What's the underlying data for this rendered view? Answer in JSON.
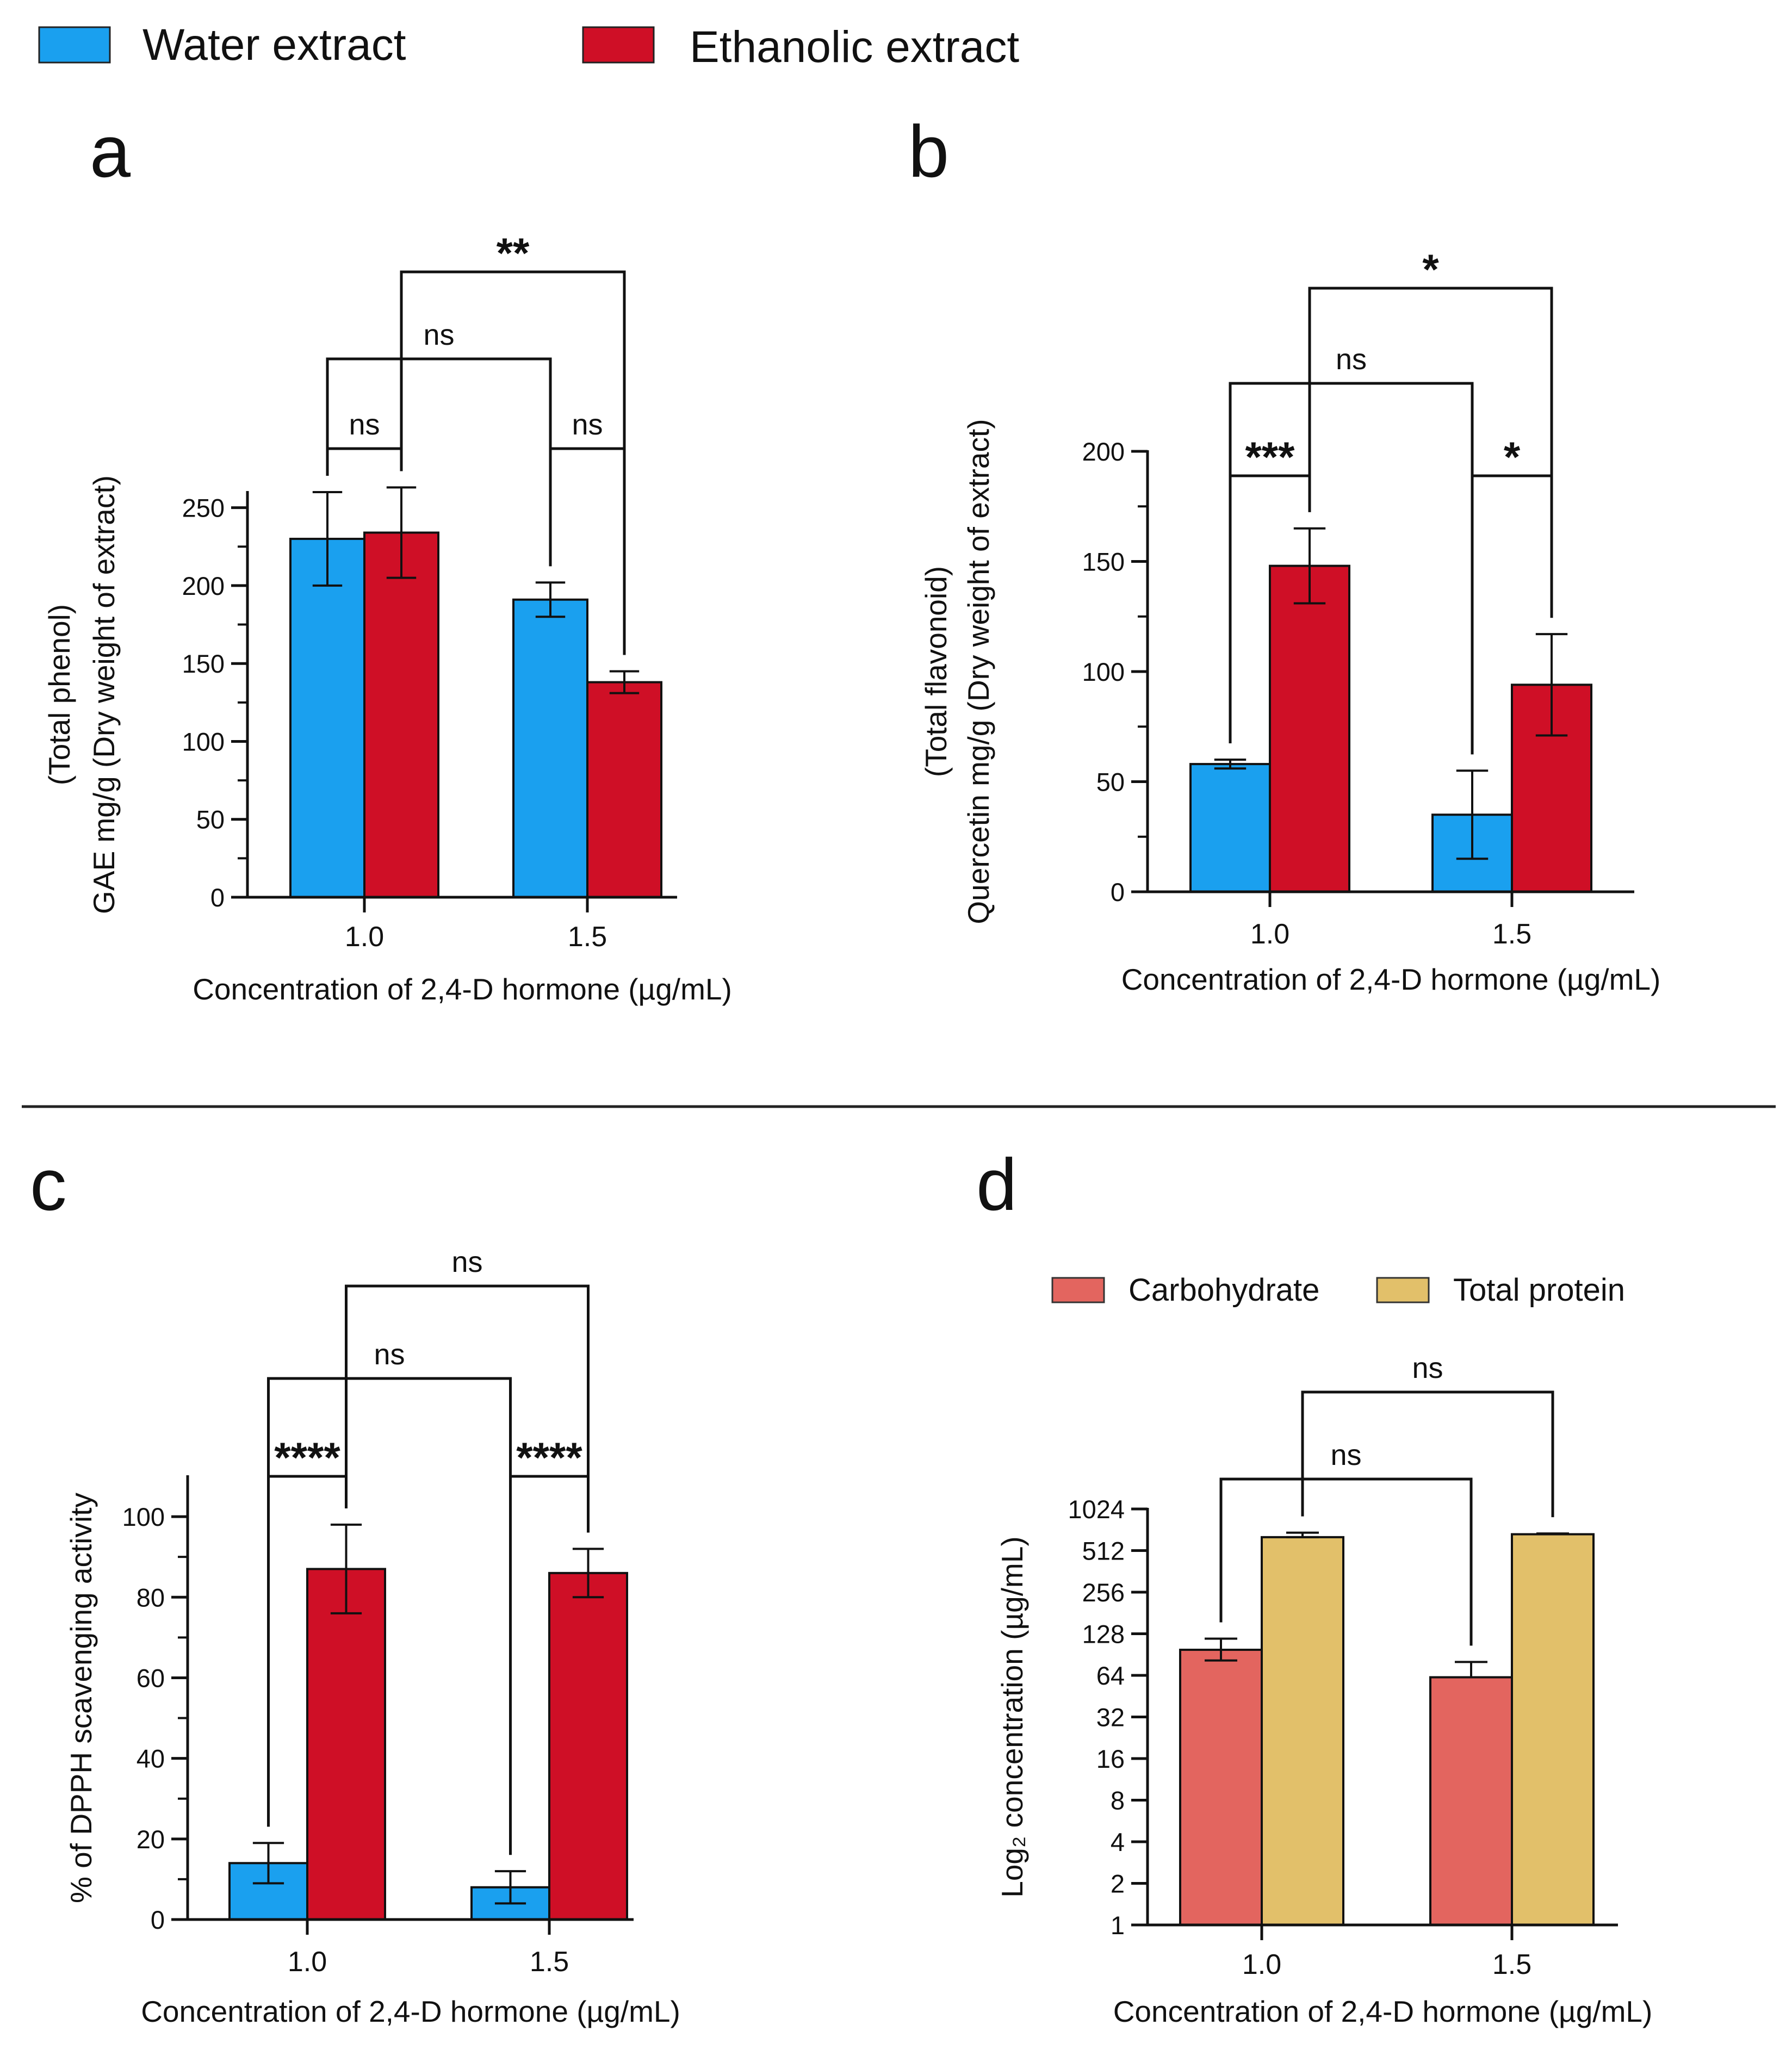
{
  "legend": {
    "items": [
      {
        "label": "Water extract",
        "color": "#1aa0ef"
      },
      {
        "label": "Ethanolic extract",
        "color": "#cf0f26"
      }
    ]
  },
  "divider": {
    "color": "#222222"
  },
  "chart_data": [
    {
      "id": "a",
      "panel_label": "a",
      "type": "bar",
      "title": "",
      "xlabel": "Concentration of 2,4-D hormone (µg/mL)",
      "ylabel_lines": [
        "(Total phenol)",
        "GAE mg/g (Dry weight of extract)"
      ],
      "categories": [
        "1.0",
        "1.5"
      ],
      "scale": "linear",
      "ylim": [
        0,
        260
      ],
      "yticks": [
        0,
        50,
        100,
        150,
        200,
        250
      ],
      "ytick_labels": [
        "0",
        "50",
        "100",
        "150",
        "200",
        "250"
      ],
      "series": [
        {
          "name": "Water extract",
          "color": "#1aa0ef",
          "values": [
            230,
            191
          ],
          "errors": [
            30,
            11
          ]
        },
        {
          "name": "Ethanolic extract",
          "color": "#cf0f26",
          "values": [
            234,
            138
          ],
          "errors": [
            29,
            7
          ]
        }
      ],
      "significance": [
        {
          "label": "ns",
          "from": [
            0,
            0
          ],
          "to": [
            0,
            1
          ]
        },
        {
          "label": "ns",
          "from": [
            1,
            0
          ],
          "to": [
            1,
            1
          ]
        },
        {
          "label": "ns",
          "from": [
            0,
            0
          ],
          "to": [
            1,
            0
          ]
        },
        {
          "label": "**",
          "from": [
            0,
            1
          ],
          "to": [
            1,
            1
          ]
        }
      ]
    },
    {
      "id": "b",
      "panel_label": "b",
      "type": "bar",
      "title": "",
      "xlabel": "Concentration of 2,4-D hormone (µg/mL)",
      "ylabel_lines": [
        "(Total flavonoid)",
        "Quercetin mg/g (Dry weight of extract)"
      ],
      "categories": [
        "1.0",
        "1.5"
      ],
      "scale": "linear",
      "ylim": [
        0,
        200
      ],
      "yticks": [
        0,
        50,
        100,
        150,
        200
      ],
      "ytick_labels": [
        "0",
        "50",
        "100",
        "150",
        "200"
      ],
      "series": [
        {
          "name": "Water extract",
          "color": "#1aa0ef",
          "values": [
            58,
            35
          ],
          "errors": [
            2,
            20
          ]
        },
        {
          "name": "Ethanolic extract",
          "color": "#cf0f26",
          "values": [
            148,
            94
          ],
          "errors": [
            17,
            23
          ]
        }
      ],
      "significance": [
        {
          "label": "***",
          "from": [
            0,
            0
          ],
          "to": [
            0,
            1
          ]
        },
        {
          "label": "*",
          "from": [
            1,
            0
          ],
          "to": [
            1,
            1
          ]
        },
        {
          "label": "ns",
          "from": [
            0,
            0
          ],
          "to": [
            1,
            0
          ]
        },
        {
          "label": "*",
          "from": [
            0,
            1
          ],
          "to": [
            1,
            1
          ]
        }
      ]
    },
    {
      "id": "c",
      "panel_label": "c",
      "type": "bar",
      "title": "",
      "xlabel": "Concentration of 2,4-D hormone (µg/mL)",
      "ylabel_lines": [
        "% of DPPH scavenging activity"
      ],
      "categories": [
        "1.0",
        "1.5"
      ],
      "scale": "linear",
      "ylim": [
        0,
        110
      ],
      "yticks": [
        0,
        20,
        40,
        60,
        80,
        100
      ],
      "ytick_labels": [
        "0",
        "20",
        "40",
        "60",
        "80",
        "100"
      ],
      "series": [
        {
          "name": "Water extract",
          "color": "#1aa0ef",
          "values": [
            14,
            8
          ],
          "errors": [
            5,
            4
          ]
        },
        {
          "name": "Ethanolic extract",
          "color": "#cf0f26",
          "values": [
            87,
            86
          ],
          "errors": [
            11,
            6
          ]
        }
      ],
      "significance": [
        {
          "label": "****",
          "from": [
            0,
            0
          ],
          "to": [
            0,
            1
          ]
        },
        {
          "label": "****",
          "from": [
            1,
            0
          ],
          "to": [
            1,
            1
          ]
        },
        {
          "label": "ns",
          "from": [
            0,
            0
          ],
          "to": [
            1,
            0
          ]
        },
        {
          "label": "ns",
          "from": [
            0,
            1
          ],
          "to": [
            1,
            1
          ]
        }
      ]
    },
    {
      "id": "d",
      "panel_label": "d",
      "type": "bar",
      "title": "",
      "xlabel": "Concentration of 2,4-D hormone (µg/mL)",
      "ylabel_lines": [
        "Log₂ concentration (µg/mL)"
      ],
      "categories": [
        "1.0",
        "1.5"
      ],
      "scale": "log2",
      "ylim": [
        1,
        1024
      ],
      "yticks": [
        1,
        2,
        4,
        8,
        16,
        32,
        64,
        128,
        256,
        512,
        1024
      ],
      "ytick_labels": [
        "1",
        "2",
        "4",
        "8",
        "16",
        "32",
        "64",
        "128",
        "256",
        "512",
        "1024"
      ],
      "legend": [
        {
          "label": "Carbohydrate",
          "color": "#e3655f"
        },
        {
          "label": "Total protein",
          "color": "#e2c06a"
        }
      ],
      "series": [
        {
          "name": "Carbohydrate",
          "color": "#e3655f",
          "values": [
            98,
            62
          ],
          "err_hi": [
            118,
            80
          ],
          "err_lo": [
            82,
            62
          ]
        },
        {
          "name": "Total protein",
          "color": "#e2c06a",
          "values": [
            640,
            672
          ],
          "err_hi": [
            690,
            680
          ],
          "err_lo": [
            640,
            672
          ]
        }
      ],
      "significance": [
        {
          "label": "ns",
          "from": [
            0,
            0
          ],
          "to": [
            1,
            0
          ]
        },
        {
          "label": "ns",
          "from": [
            0,
            1
          ],
          "to": [
            1,
            1
          ]
        }
      ]
    }
  ]
}
